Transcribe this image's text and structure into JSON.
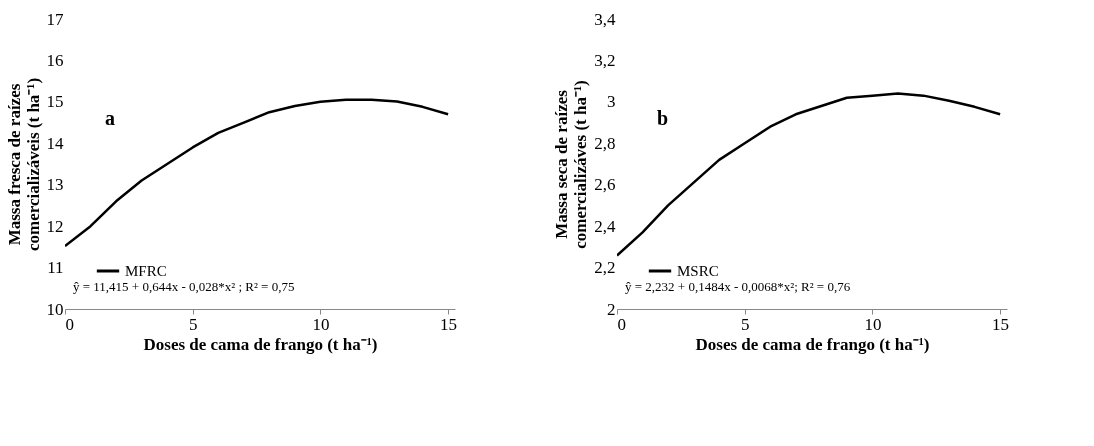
{
  "chart_data": [
    {
      "type": "line",
      "xlabel": "Doses de cama de frango (t ha⁻¹)",
      "ylabel": "Massa fresca de raízes comercializáveis (t ha⁻¹)",
      "x": [
        0,
        1,
        2,
        3,
        4,
        5,
        6,
        7,
        8,
        9,
        10,
        11,
        12,
        13,
        14,
        15
      ],
      "series": [
        {
          "name": "MFRC",
          "color": "#000000",
          "values": [
            11.52,
            12.0,
            12.6,
            13.1,
            13.5,
            13.9,
            14.25,
            14.5,
            14.75,
            14.9,
            15.0,
            15.05,
            15.05,
            15.01,
            14.88,
            14.7
          ]
        }
      ],
      "xlim": [
        0,
        15.27
      ],
      "xticks": [
        0,
        5,
        10,
        15
      ],
      "ylim": [
        10,
        17
      ],
      "yticks": [
        10,
        11,
        12,
        13,
        14,
        15,
        16,
        17
      ],
      "legend": "bottom left",
      "grid": false,
      "annotations": [
        "a",
        "ŷ = 11,415 + 0,644x - 0,028*x² ; R² = 0,75"
      ]
    },
    {
      "type": "line",
      "xlabel": "Doses de cama de frango (t ha⁻¹)",
      "ylabel": "Massa seca de raízes comercializáves (t ha⁻¹)",
      "x": [
        0,
        1,
        2,
        3,
        4,
        5,
        6,
        7,
        8,
        9,
        10,
        11,
        12,
        13,
        14,
        15
      ],
      "series": [
        {
          "name": "MSRC",
          "color": "#000000",
          "values": [
            2.258,
            2.37,
            2.5,
            2.61,
            2.72,
            2.8,
            2.88,
            2.94,
            2.98,
            3.02,
            3.03,
            3.04,
            3.03,
            3.005,
            2.976,
            2.94
          ]
        }
      ],
      "xlim": [
        0,
        15.27
      ],
      "xticks": [
        0,
        5,
        10,
        15
      ],
      "ylim": [
        2,
        3.4
      ],
      "yticks": [
        2,
        {
          "value": 2.2,
          "label": "2,2"
        },
        {
          "value": 2.4,
          "label": "2,4"
        },
        {
          "value": 2.6,
          "label": "2,6"
        },
        {
          "value": 2.8,
          "label": "2,8"
        },
        3,
        {
          "value": 3.2,
          "label": "3,2"
        },
        {
          "value": 3.4,
          "label": "3,4"
        }
      ],
      "legend": "bottom left",
      "grid": false,
      "annotations": [
        "b",
        "ŷ = 2,232 + 0,1484x - 0,0068*x²; R² = 0,76"
      ]
    }
  ]
}
